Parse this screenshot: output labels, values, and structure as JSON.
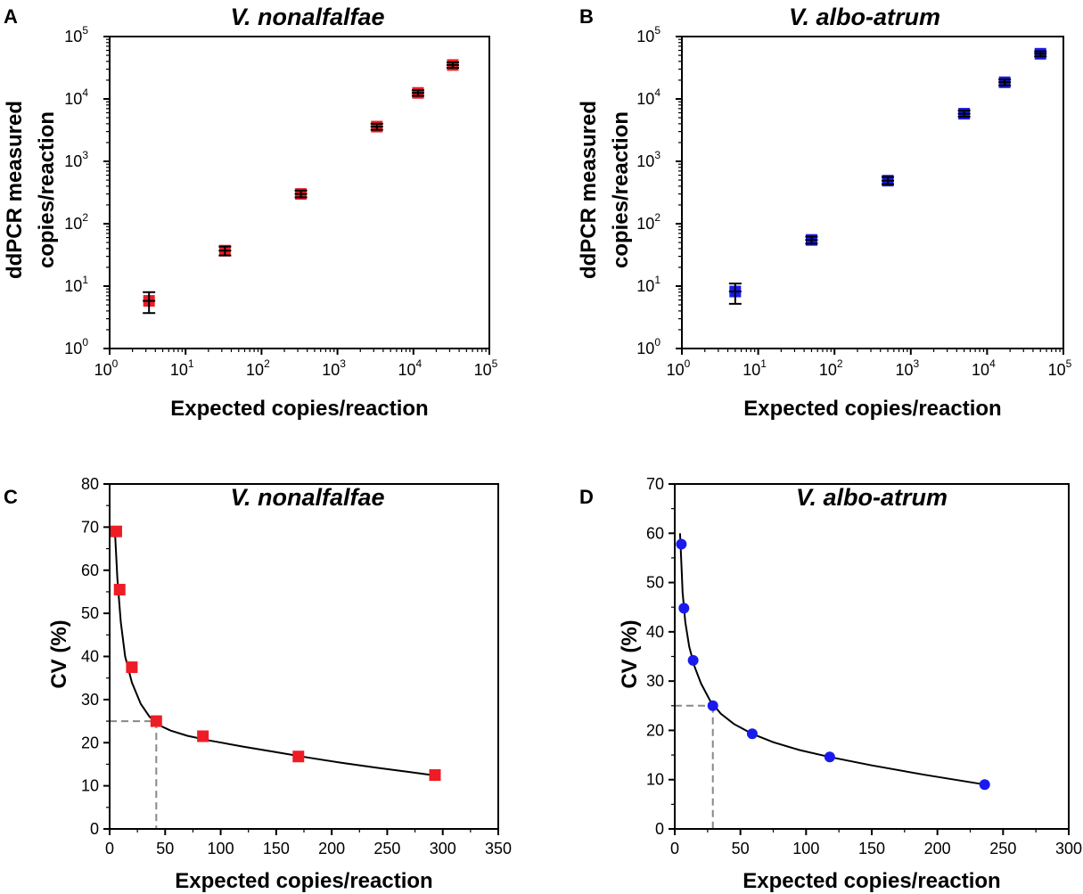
{
  "chart_data": [
    {
      "panel": "A",
      "title": "V. nonalfalfae",
      "type": "scatter",
      "xscale": "log",
      "yscale": "log",
      "xlim": [
        1,
        100000
      ],
      "ylim": [
        1,
        100000
      ],
      "xlabel": "Expected copies/reaction",
      "ylabel": [
        "ddPCR measured",
        "copies/reaction"
      ],
      "ticks": [
        {
          "base": "10",
          "exp": "0",
          "value": 1
        },
        {
          "base": "10",
          "exp": "1",
          "value": 10
        },
        {
          "base": "10",
          "exp": "2",
          "value": 100
        },
        {
          "base": "10",
          "exp": "3",
          "value": 1000
        },
        {
          "base": "10",
          "exp": "4",
          "value": 10000
        },
        {
          "base": "10",
          "exp": "5",
          "value": 100000
        }
      ],
      "color": "#ee1c25",
      "marker": "square",
      "points": [
        {
          "x": 3.3,
          "y": 5.8,
          "err_low": 3.7,
          "err_high": 8.0
        },
        {
          "x": 33,
          "y": 37,
          "err_low": 31,
          "err_high": 43
        },
        {
          "x": 330,
          "y": 300,
          "err_low": 265,
          "err_high": 340
        },
        {
          "x": 3300,
          "y": 3600,
          "err_low": 3200,
          "err_high": 4000
        },
        {
          "x": 11500,
          "y": 12500,
          "err_low": 11200,
          "err_high": 13800
        },
        {
          "x": 33000,
          "y": 35000,
          "err_low": 31500,
          "err_high": 38500
        }
      ]
    },
    {
      "panel": "B",
      "title": "V. albo-atrum",
      "type": "scatter",
      "xscale": "log",
      "yscale": "log",
      "xlim": [
        1,
        100000
      ],
      "ylim": [
        1,
        100000
      ],
      "xlabel": "Expected copies/reaction",
      "ylabel": [
        "ddPCR measured",
        "copies/reaction"
      ],
      "ticks": [
        {
          "base": "10",
          "exp": "0",
          "value": 1
        },
        {
          "base": "10",
          "exp": "1",
          "value": 10
        },
        {
          "base": "10",
          "exp": "2",
          "value": 100
        },
        {
          "base": "10",
          "exp": "3",
          "value": 1000
        },
        {
          "base": "10",
          "exp": "4",
          "value": 10000
        },
        {
          "base": "10",
          "exp": "5",
          "value": 100000
        }
      ],
      "color": "#1a1aee",
      "marker": "square",
      "points": [
        {
          "x": 5,
          "y": 8.2,
          "err_low": 5.2,
          "err_high": 11.0
        },
        {
          "x": 50,
          "y": 55,
          "err_low": 48,
          "err_high": 62
        },
        {
          "x": 500,
          "y": 490,
          "err_low": 430,
          "err_high": 560
        },
        {
          "x": 5000,
          "y": 5800,
          "err_low": 5200,
          "err_high": 6500
        },
        {
          "x": 17000,
          "y": 18500,
          "err_low": 16500,
          "err_high": 20500
        },
        {
          "x": 50000,
          "y": 53000,
          "err_low": 48000,
          "err_high": 58000
        }
      ]
    },
    {
      "panel": "C",
      "title": "V. nonalfalfae",
      "type": "scatter",
      "xscale": "linear",
      "yscale": "linear",
      "xlim": [
        0,
        350
      ],
      "ylim": [
        0,
        80
      ],
      "xticks": [
        0,
        50,
        100,
        150,
        200,
        250,
        300,
        350
      ],
      "yticks": [
        0,
        10,
        20,
        30,
        40,
        50,
        60,
        70,
        80
      ],
      "xlabel": "Expected copies/reaction",
      "ylabel": "CV (%)",
      "color": "#ee1c25",
      "marker": "square",
      "points": [
        {
          "x": 6,
          "y": 69
        },
        {
          "x": 9,
          "y": 55.5
        },
        {
          "x": 20,
          "y": 37.5
        },
        {
          "x": 42,
          "y": 25
        },
        {
          "x": 84,
          "y": 21.5
        },
        {
          "x": 170,
          "y": 16.8
        },
        {
          "x": 293,
          "y": 12.5
        }
      ],
      "fit_curve": [
        [
          5,
          68
        ],
        [
          7,
          58
        ],
        [
          10,
          48
        ],
        [
          14,
          40
        ],
        [
          20,
          34
        ],
        [
          28,
          29
        ],
        [
          36,
          26
        ],
        [
          45,
          24
        ],
        [
          55,
          22.8
        ],
        [
          70,
          21.6
        ],
        [
          90,
          20.5
        ],
        [
          120,
          19.1
        ],
        [
          150,
          17.8
        ],
        [
          180,
          16.5
        ],
        [
          210,
          15.3
        ],
        [
          240,
          14.2
        ],
        [
          270,
          13.2
        ],
        [
          293,
          12.4
        ]
      ],
      "threshold": {
        "x": 42,
        "y": 25
      }
    },
    {
      "panel": "D",
      "title": "V. albo-atrum",
      "type": "scatter",
      "xscale": "linear",
      "yscale": "linear",
      "xlim": [
        0,
        300
      ],
      "ylim": [
        0,
        70
      ],
      "xticks": [
        0,
        50,
        100,
        150,
        200,
        250,
        300
      ],
      "yticks": [
        0,
        10,
        20,
        30,
        40,
        50,
        60,
        70
      ],
      "xlabel": "Expected copies/reaction",
      "ylabel": "CV (%)",
      "color": "#1a1aee",
      "marker": "circle",
      "points": [
        {
          "x": 5,
          "y": 57.8
        },
        {
          "x": 7,
          "y": 44.8
        },
        {
          "x": 14,
          "y": 34.2
        },
        {
          "x": 29,
          "y": 25
        },
        {
          "x": 59,
          "y": 19.3
        },
        {
          "x": 118,
          "y": 14.6
        },
        {
          "x": 236,
          "y": 9
        }
      ],
      "fit_curve": [
        [
          4,
          60
        ],
        [
          5,
          54
        ],
        [
          6,
          48
        ],
        [
          8,
          42
        ],
        [
          11,
          37
        ],
        [
          15,
          33
        ],
        [
          20,
          29.5
        ],
        [
          27,
          26
        ],
        [
          35,
          23.4
        ],
        [
          45,
          21.3
        ],
        [
          59,
          19.3
        ],
        [
          75,
          17.6
        ],
        [
          95,
          16.0
        ],
        [
          118,
          14.6
        ],
        [
          150,
          12.9
        ],
        [
          190,
          11.0
        ],
        [
          236,
          9.0
        ]
      ],
      "threshold": {
        "x": 29,
        "y": 25
      }
    }
  ]
}
